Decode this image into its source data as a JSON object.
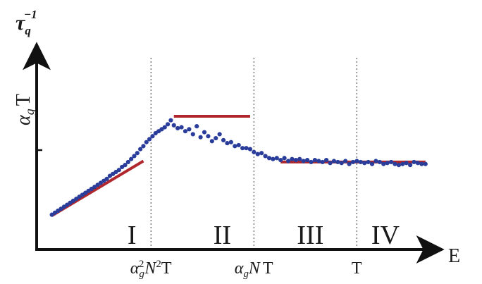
{
  "chart_data": {
    "type": "scatter",
    "title": "",
    "ylabel": {
      "main": "τ",
      "sub": "q",
      "sup": "−1"
    },
    "xlabel": "E",
    "y_tick": {
      "main": "α",
      "sub": "g",
      "tail": "T",
      "value": 1.0
    },
    "x_ticks": [
      {
        "id": "tick-ag2N2T",
        "parts": [
          "α",
          "g",
          "2",
          "N",
          "2",
          "T"
        ],
        "x": 0.3
      },
      {
        "id": "tick-agNT",
        "parts": [
          "α",
          "g",
          "N",
          "T"
        ],
        "x": 0.57
      },
      {
        "id": "tick-T",
        "parts": [
          "T"
        ],
        "x": 0.84
      }
    ],
    "regions": [
      {
        "label": "I",
        "x": 0.25
      },
      {
        "label": "II",
        "x": 0.487
      },
      {
        "label": "III",
        "x": 0.718
      },
      {
        "label": "IV",
        "x": 0.915
      }
    ],
    "xlim": [
      0,
      1.05
    ],
    "ylim": [
      0,
      2.0
    ],
    "grid": false,
    "legend": "none",
    "colors": {
      "points": "#2b3d9b",
      "fits": "#b0272d",
      "axes": "#111111",
      "guides": "#555555"
    },
    "fit_lines": [
      {
        "name": "",
        "x": [
          0.04,
          0.28
        ],
        "y": [
          0.34,
          0.89
        ]
      },
      {
        "name": "",
        "x": [
          0.36,
          0.56
        ],
        "y": [
          1.34,
          1.34
        ]
      },
      {
        "name": "",
        "x": [
          0.64,
          1.02
        ],
        "y": [
          0.88,
          0.88
        ]
      }
    ],
    "series": [
      {
        "name": "",
        "x": [
          0.04,
          0.048,
          0.056,
          0.064,
          0.072,
          0.08,
          0.088,
          0.096,
          0.104,
          0.112,
          0.12,
          0.128,
          0.136,
          0.144,
          0.152,
          0.16,
          0.168,
          0.176,
          0.184,
          0.192,
          0.2,
          0.208,
          0.216,
          0.224,
          0.232,
          0.24,
          0.248,
          0.256,
          0.264,
          0.272,
          0.28,
          0.288,
          0.296,
          0.304,
          0.312,
          0.32,
          0.328,
          0.336,
          0.344,
          0.352,
          0.36,
          0.37,
          0.38,
          0.39,
          0.4,
          0.41,
          0.42,
          0.43,
          0.44,
          0.45,
          0.46,
          0.47,
          0.48,
          0.49,
          0.5,
          0.51,
          0.52,
          0.53,
          0.54,
          0.55,
          0.56,
          0.57,
          0.58,
          0.59,
          0.6,
          0.61,
          0.62,
          0.63,
          0.64,
          0.65,
          0.66,
          0.67,
          0.68,
          0.69,
          0.7,
          0.71,
          0.72,
          0.73,
          0.74,
          0.75,
          0.76,
          0.77,
          0.78,
          0.79,
          0.8,
          0.81,
          0.82,
          0.83,
          0.84,
          0.85,
          0.86,
          0.87,
          0.88,
          0.89,
          0.9,
          0.91,
          0.92,
          0.93,
          0.94,
          0.95,
          0.96,
          0.97,
          0.98,
          0.99,
          1.0,
          1.01,
          1.02
        ],
        "y": [
          0.35,
          0.37,
          0.39,
          0.41,
          0.43,
          0.45,
          0.47,
          0.49,
          0.51,
          0.53,
          0.55,
          0.57,
          0.59,
          0.61,
          0.63,
          0.65,
          0.67,
          0.69,
          0.71,
          0.74,
          0.76,
          0.78,
          0.8,
          0.83,
          0.85,
          0.88,
          0.91,
          0.94,
          0.97,
          1.01,
          1.04,
          1.08,
          1.11,
          1.14,
          1.17,
          1.19,
          1.21,
          1.23,
          1.26,
          1.3,
          1.25,
          1.22,
          1.23,
          1.19,
          1.21,
          1.16,
          1.24,
          1.13,
          1.18,
          1.14,
          1.09,
          1.12,
          1.16,
          1.1,
          1.07,
          1.08,
          1.04,
          1.05,
          1.02,
          1.02,
          1.01,
          0.98,
          0.96,
          0.97,
          0.94,
          0.92,
          0.91,
          0.92,
          0.9,
          0.92,
          0.89,
          0.91,
          0.9,
          0.91,
          0.89,
          0.9,
          0.88,
          0.9,
          0.89,
          0.88,
          0.9,
          0.87,
          0.89,
          0.88,
          0.87,
          0.89,
          0.86,
          0.88,
          0.89,
          0.88,
          0.87,
          0.88,
          0.86,
          0.89,
          0.88,
          0.86,
          0.87,
          0.88,
          0.86,
          0.85,
          0.86,
          0.87,
          0.85,
          0.88,
          0.87,
          0.86,
          0.86
        ]
      }
    ]
  }
}
